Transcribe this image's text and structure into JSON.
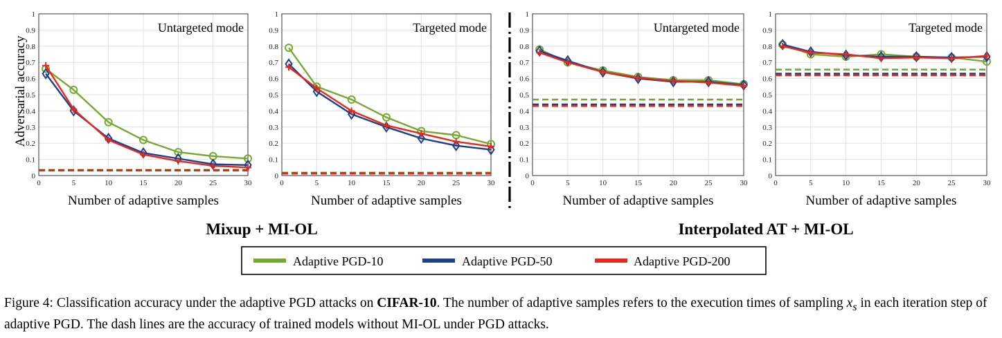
{
  "chart_data": {
    "type": "line",
    "ylabel": "Adversarial accuracy",
    "xlabel": "Number of adaptive samples",
    "x": [
      1,
      5,
      10,
      15,
      20,
      25,
      30
    ],
    "xticks": [
      0,
      5,
      10,
      15,
      20,
      25,
      30
    ],
    "yticks": [
      0,
      0.1,
      0.2,
      0.3,
      0.4,
      0.5,
      0.6,
      0.7,
      0.8,
      0.9,
      1
    ],
    "xlim": [
      0,
      30
    ],
    "ylim": [
      0,
      1
    ],
    "grid": true,
    "colors": {
      "pgd10": "#77a832",
      "pgd50": "#1f3f8a",
      "pgd200": "#e8281a"
    },
    "markers": {
      "pgd10": "circle",
      "pgd50": "diamond",
      "pgd200": "plus"
    },
    "panels": [
      {
        "group": "Mixup + MI-OL",
        "mode": "Untargeted mode",
        "series": [
          {
            "key": "pgd10",
            "values": [
              0.66,
              0.53,
              0.33,
              0.22,
              0.145,
              0.12,
              0.105
            ],
            "baseline": 0.035
          },
          {
            "key": "pgd50",
            "values": [
              0.63,
              0.4,
              0.23,
              0.14,
              0.105,
              0.07,
              0.065
            ],
            "baseline": 0.033
          },
          {
            "key": "pgd200",
            "values": [
              0.68,
              0.41,
              0.22,
              0.13,
              0.09,
              0.06,
              0.05
            ],
            "baseline": 0.031
          }
        ]
      },
      {
        "group": "Mixup + MI-OL",
        "mode": "Targeted mode",
        "series": [
          {
            "key": "pgd10",
            "values": [
              0.79,
              0.55,
              0.47,
              0.36,
              0.275,
              0.25,
              0.195
            ],
            "baseline": 0.018
          },
          {
            "key": "pgd50",
            "values": [
              0.69,
              0.52,
              0.38,
              0.3,
              0.23,
              0.185,
              0.16
            ],
            "baseline": 0.014
          },
          {
            "key": "pgd200",
            "values": [
              0.67,
              0.54,
              0.4,
              0.31,
              0.26,
              0.21,
              0.18
            ],
            "baseline": 0.012
          }
        ]
      },
      {
        "group": "Interpolated AT + MI-OL",
        "mode": "Untargeted mode",
        "series": [
          {
            "key": "pgd10",
            "values": [
              0.78,
              0.7,
              0.65,
              0.61,
              0.59,
              0.59,
              0.565
            ],
            "baseline": 0.47
          },
          {
            "key": "pgd50",
            "values": [
              0.77,
              0.71,
              0.64,
              0.6,
              0.58,
              0.58,
              0.56
            ],
            "baseline": 0.44
          },
          {
            "key": "pgd200",
            "values": [
              0.76,
              0.7,
              0.64,
              0.605,
              0.585,
              0.575,
              0.555
            ],
            "baseline": 0.43
          }
        ]
      },
      {
        "group": "Interpolated AT + MI-OL",
        "mode": "Targeted mode",
        "series": [
          {
            "key": "pgd10",
            "values": [
              0.81,
              0.75,
              0.735,
              0.75,
              0.735,
              0.73,
              0.705
            ],
            "baseline": 0.655
          },
          {
            "key": "pgd50",
            "values": [
              0.81,
              0.765,
              0.745,
              0.735,
              0.735,
              0.73,
              0.735
            ],
            "baseline": 0.63
          },
          {
            "key": "pgd200",
            "values": [
              0.8,
              0.76,
              0.75,
              0.725,
              0.73,
              0.725,
              0.74
            ],
            "baseline": 0.62
          }
        ]
      }
    ],
    "legend": {
      "position": "bottom-center",
      "entries": [
        {
          "key": "pgd10",
          "label": "Adaptive PGD-10"
        },
        {
          "key": "pgd50",
          "label": "Adaptive PGD-50"
        },
        {
          "key": "pgd200",
          "label": "Adaptive PGD-200"
        }
      ]
    },
    "groups": [
      "Mixup + MI-OL",
      "Interpolated AT + MI-OL"
    ]
  },
  "caption": {
    "prefix": "Figure 4: Classification accuracy under the adaptive PGD attacks on ",
    "dataset": "CIFAR-10",
    "middle": ". The number of adaptive samples refers to the execution times of sampling ",
    "var_base": "x",
    "var_sub": "s",
    "suffix": " in each iteration step of adaptive PGD. The dash lines are the accuracy of trained models without MI-OL under PGD attacks."
  }
}
